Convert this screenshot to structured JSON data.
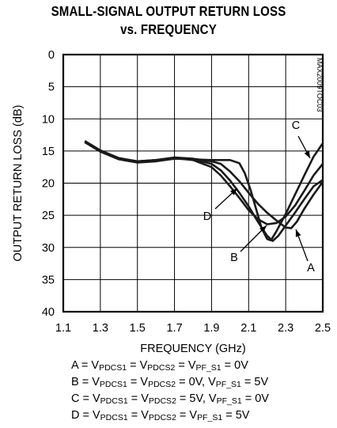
{
  "chart_data": {
    "type": "line",
    "title": [
      "SMALL-SIGNAL OUTPUT RETURN LOSS",
      "vs. FREQUENCY"
    ],
    "xlabel": "FREQUENCY (GHz)",
    "ylabel": "OUTPUT RETURN LOSS (dB)",
    "xlim": [
      1.1,
      2.5
    ],
    "ylim": [
      0,
      40
    ],
    "y_inverted": true,
    "xticks": [
      "1.1",
      "1.3",
      "1.5",
      "1.7",
      "1.9",
      "2.1",
      "2.3",
      "2.5"
    ],
    "yticks": [
      "0",
      "5",
      "10",
      "15",
      "20",
      "25",
      "30",
      "35",
      "40"
    ],
    "grid": true,
    "watermark": "MAX2009TOC03",
    "series": [
      {
        "name": "A",
        "x": [
          1.22,
          1.3,
          1.4,
          1.5,
          1.6,
          1.7,
          1.8,
          1.9,
          1.95,
          2.0,
          2.05,
          2.1,
          2.15,
          2.2,
          2.25,
          2.3,
          2.33,
          2.36,
          2.4,
          2.45,
          2.5
        ],
        "y": [
          13.7,
          15.0,
          16.2,
          16.6,
          16.4,
          16.0,
          16.2,
          16.6,
          17.0,
          18.2,
          19.7,
          21.5,
          23.2,
          24.6,
          25.8,
          26.9,
          27.0,
          26.0,
          24.0,
          21.8,
          19.8
        ]
      },
      {
        "name": "B",
        "x": [
          1.22,
          1.3,
          1.4,
          1.5,
          1.6,
          1.7,
          1.8,
          1.9,
          1.95,
          2.0,
          2.05,
          2.1,
          2.15,
          2.2,
          2.23,
          2.26,
          2.3,
          2.35,
          2.4,
          2.45,
          2.5
        ],
        "y": [
          13.7,
          15.0,
          16.2,
          16.7,
          16.5,
          16.1,
          16.3,
          17.0,
          18.0,
          19.6,
          21.5,
          23.6,
          26.0,
          28.2,
          29.0,
          28.2,
          26.6,
          24.6,
          22.5,
          20.5,
          19.5
        ]
      },
      {
        "name": "C",
        "x": [
          1.22,
          1.3,
          1.4,
          1.5,
          1.6,
          1.7,
          1.8,
          1.9,
          2.0,
          2.05,
          2.08,
          2.11,
          2.14,
          2.17,
          2.2,
          2.22,
          2.25,
          2.3,
          2.35,
          2.4,
          2.45,
          2.5
        ],
        "y": [
          13.7,
          15.1,
          16.3,
          16.8,
          16.6,
          16.2,
          16.3,
          16.4,
          16.4,
          16.9,
          18.5,
          21.0,
          24.0,
          27.0,
          28.7,
          28.9,
          27.5,
          24.8,
          21.8,
          18.8,
          15.9,
          13.8
        ]
      },
      {
        "name": "D",
        "x": [
          1.22,
          1.3,
          1.4,
          1.5,
          1.6,
          1.7,
          1.8,
          1.9,
          1.95,
          2.0,
          2.05,
          2.1,
          2.15,
          2.2,
          2.25,
          2.3,
          2.35,
          2.4,
          2.45,
          2.5
        ],
        "y": [
          13.5,
          14.9,
          16.1,
          16.6,
          16.4,
          16.1,
          16.4,
          17.5,
          18.8,
          20.5,
          22.3,
          24.2,
          25.6,
          26.4,
          26.2,
          25.2,
          23.5,
          21.2,
          18.8,
          17.0
        ]
      }
    ],
    "annotations": [
      "A",
      "B",
      "C",
      "D"
    ]
  },
  "legend": {
    "a": {
      "pre": "A = V",
      "s1": "PDCS1",
      "m1": " = V",
      "s2": "PDCS2",
      "m2": " = V",
      "s3": "PF_S1",
      "post": " = 0V"
    },
    "b": {
      "pre": "B = V",
      "s1": "PDCS1",
      "m1": " = V",
      "s2": "PDCS2",
      "m2": " = 0V, V",
      "s3": "PF_S1",
      "post": " = 5V"
    },
    "c": {
      "pre": "C = V",
      "s1": "PDCS1",
      "m1": " = V",
      "s2": "PDCS2",
      "m2": " = 5V, V",
      "s3": "PF_S1",
      "post": " = 0V"
    },
    "d": {
      "pre": "D = V",
      "s1": "PDCS1",
      "m1": " = V",
      "s2": "PDCS2",
      "m2": " = V",
      "s3": "PF_S1",
      "post": " = 5V"
    }
  }
}
